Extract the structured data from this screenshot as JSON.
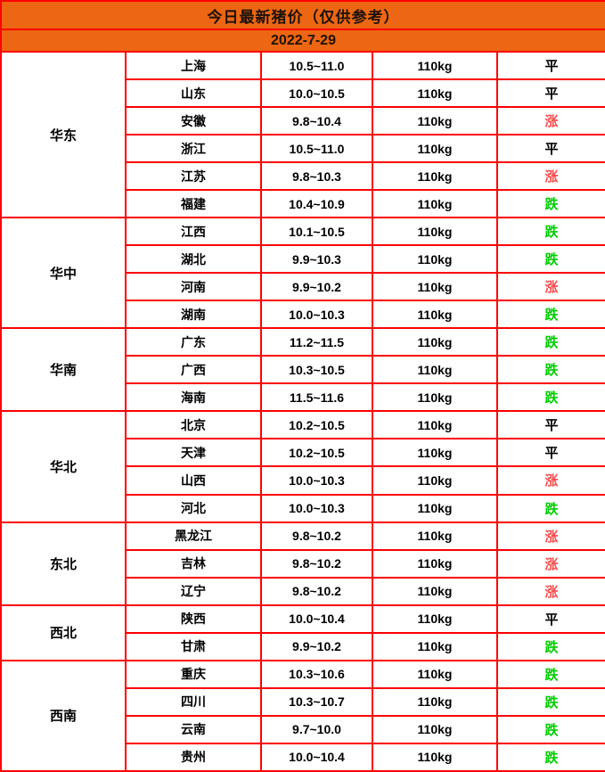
{
  "header": {
    "title": "今日最新猪价（仅供参考）",
    "date": "2022-7-29"
  },
  "colors": {
    "header_bg": "#ec6613",
    "border": "#fe0000",
    "text": "#000000",
    "title_text": "#1c1209",
    "trend": {
      "涨": "#fb4b4b",
      "跌": "#00cc00",
      "平": "#000000"
    }
  },
  "chart_data": {
    "type": "table",
    "title": "今日最新猪价（仅供参考）",
    "date": "2022-7-29",
    "groups": [
      {
        "region": "华东",
        "rows": [
          {
            "province": "上海",
            "price": "10.5~11.0",
            "weight": "110kg",
            "trend": "平"
          },
          {
            "province": "山东",
            "price": "10.0~10.5",
            "weight": "110kg",
            "trend": "平"
          },
          {
            "province": "安徽",
            "price": "9.8~10.4",
            "weight": "110kg",
            "trend": "涨"
          },
          {
            "province": "浙江",
            "price": "10.5~11.0",
            "weight": "110kg",
            "trend": "平"
          },
          {
            "province": "江苏",
            "price": "9.8~10.3",
            "weight": "110kg",
            "trend": "涨"
          },
          {
            "province": "福建",
            "price": "10.4~10.9",
            "weight": "110kg",
            "trend": "跌"
          }
        ]
      },
      {
        "region": "华中",
        "rows": [
          {
            "province": "江西",
            "price": "10.1~10.5",
            "weight": "110kg",
            "trend": "跌"
          },
          {
            "province": "湖北",
            "price": "9.9~10.3",
            "weight": "110kg",
            "trend": "跌"
          },
          {
            "province": "河南",
            "price": "9.9~10.2",
            "weight": "110kg",
            "trend": "涨"
          },
          {
            "province": "湖南",
            "price": "10.0~10.3",
            "weight": "110kg",
            "trend": "跌"
          }
        ]
      },
      {
        "region": "华南",
        "rows": [
          {
            "province": "广东",
            "price": "11.2~11.5",
            "weight": "110kg",
            "trend": "跌"
          },
          {
            "province": "广西",
            "price": "10.3~10.5",
            "weight": "110kg",
            "trend": "跌"
          },
          {
            "province": "海南",
            "price": "11.5~11.6",
            "weight": "110kg",
            "trend": "跌"
          }
        ]
      },
      {
        "region": "华北",
        "rows": [
          {
            "province": "北京",
            "price": "10.2~10.5",
            "weight": "110kg",
            "trend": "平"
          },
          {
            "province": "天津",
            "price": "10.2~10.5",
            "weight": "110kg",
            "trend": "平"
          },
          {
            "province": "山西",
            "price": "10.0~10.3",
            "weight": "110kg",
            "trend": "涨"
          },
          {
            "province": "河北",
            "price": "10.0~10.3",
            "weight": "110kg",
            "trend": "跌"
          }
        ]
      },
      {
        "region": "东北",
        "rows": [
          {
            "province": "黑龙江",
            "price": "9.8~10.2",
            "weight": "110kg",
            "trend": "涨"
          },
          {
            "province": "吉林",
            "price": "9.8~10.2",
            "weight": "110kg",
            "trend": "涨"
          },
          {
            "province": "辽宁",
            "price": "9.8~10.2",
            "weight": "110kg",
            "trend": "涨"
          }
        ]
      },
      {
        "region": "西北",
        "rows": [
          {
            "province": "陕西",
            "price": "10.0~10.4",
            "weight": "110kg",
            "trend": "平"
          },
          {
            "province": "甘肃",
            "price": "9.9~10.2",
            "weight": "110kg",
            "trend": "跌"
          }
        ]
      },
      {
        "region": "西南",
        "rows": [
          {
            "province": "重庆",
            "price": "10.3~10.6",
            "weight": "110kg",
            "trend": "跌"
          },
          {
            "province": "四川",
            "price": "10.3~10.7",
            "weight": "110kg",
            "trend": "跌"
          },
          {
            "province": "云南",
            "price": "9.7~10.0",
            "weight": "110kg",
            "trend": "跌"
          },
          {
            "province": "贵州",
            "price": "10.0~10.4",
            "weight": "110kg",
            "trend": "跌"
          }
        ]
      }
    ]
  }
}
